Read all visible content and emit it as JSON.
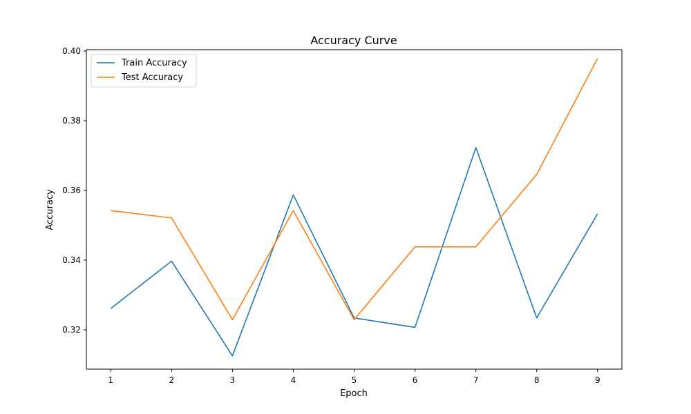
{
  "chart_data": {
    "type": "line",
    "title": "Accuracy Curve",
    "xlabel": "Epoch",
    "ylabel": "Accuracy",
    "x": [
      1,
      2,
      3,
      4,
      5,
      6,
      7,
      8,
      9
    ],
    "x_ticks": [
      "1",
      "2",
      "3",
      "4",
      "5",
      "6",
      "7",
      "8",
      "9"
    ],
    "y_ticks": [
      "0.32",
      "0.34",
      "0.36",
      "0.38",
      "0.40"
    ],
    "xlim": [
      0.6,
      9.4
    ],
    "ylim": [
      0.3087,
      0.4004
    ],
    "grid": false,
    "legend_position": "top-left",
    "series": [
      {
        "name": "Train Accuracy",
        "color": "#1f77b4",
        "values": [
          0.3261,
          0.3397,
          0.3125,
          0.3587,
          0.3234,
          0.3207,
          0.3723,
          0.3234,
          0.3533
        ]
      },
      {
        "name": "Test Accuracy",
        "color": "#ff7f0e",
        "values": [
          0.3542,
          0.3521,
          0.3229,
          0.3542,
          0.3229,
          0.3438,
          0.3438,
          0.3646,
          0.3979
        ]
      }
    ]
  }
}
